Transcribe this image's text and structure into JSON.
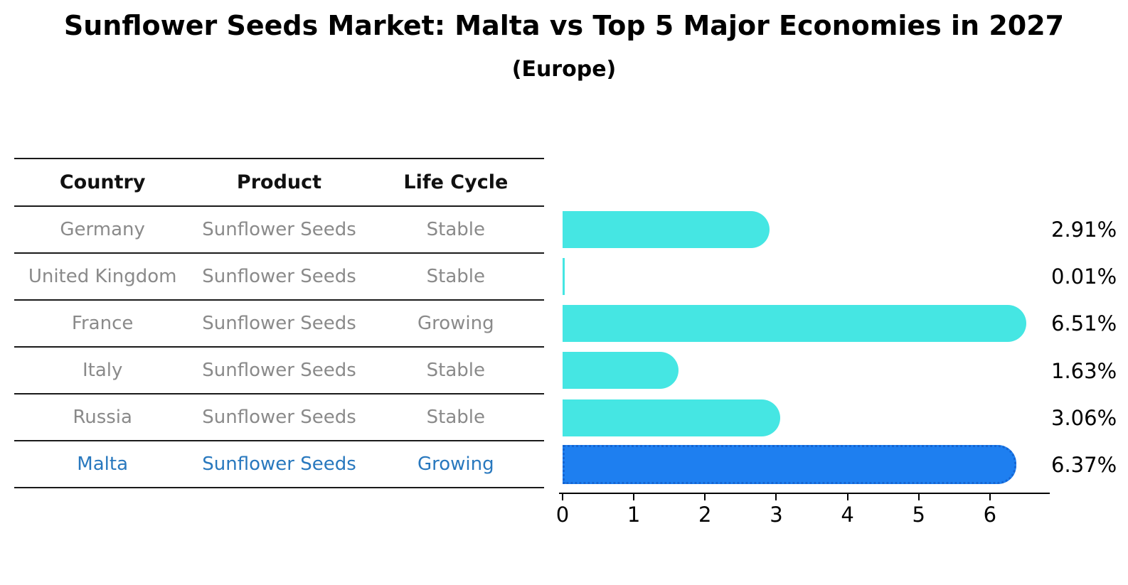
{
  "title": "Sunflower Seeds Market: Malta vs Top 5 Major Economies in 2027",
  "subtitle": "(Europe)",
  "table": {
    "headers": [
      "Country",
      "Product",
      "Life Cycle"
    ],
    "rows": [
      {
        "country": "Germany",
        "product": "Sunflower Seeds",
        "life_cycle": "Stable",
        "highlight": false
      },
      {
        "country": "United Kingdom",
        "product": "Sunflower Seeds",
        "life_cycle": "Stable",
        "highlight": false
      },
      {
        "country": "France",
        "product": "Sunflower Seeds",
        "life_cycle": "Growing",
        "highlight": false
      },
      {
        "country": "Italy",
        "product": "Sunflower Seeds",
        "life_cycle": "Stable",
        "highlight": false
      },
      {
        "country": "Russia",
        "product": "Sunflower Seeds",
        "life_cycle": "Stable",
        "highlight": false
      },
      {
        "country": "Malta",
        "product": "Sunflower Seeds",
        "life_cycle": "Growing",
        "highlight": true
      }
    ]
  },
  "chart_data": {
    "type": "bar",
    "orientation": "horizontal",
    "title": "Sunflower Seeds Market: Malta vs Top 5 Major Economies in 2027",
    "subtitle": "(Europe)",
    "categories": [
      "Germany",
      "United Kingdom",
      "France",
      "Italy",
      "Russia",
      "Malta"
    ],
    "values": [
      2.91,
      0.01,
      6.51,
      1.63,
      3.06,
      6.37
    ],
    "value_labels": [
      "2.91%",
      "0.01%",
      "6.51%",
      "1.63%",
      "3.06%",
      "6.37%"
    ],
    "xticks": [
      0,
      1,
      2,
      3,
      4,
      5,
      6
    ],
    "xlim": [
      0,
      6.8
    ],
    "grid": false,
    "legend": "none",
    "bar_color": "#45E6E3",
    "highlight_bar_color": "#1E7FF0",
    "highlight_index": 5,
    "highlight_text_color": "#2878BE",
    "table_text_color": "#8a8a8a"
  }
}
